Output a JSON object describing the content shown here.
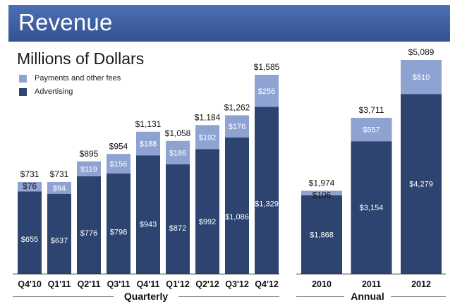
{
  "header": {
    "title": "Revenue"
  },
  "subtitle": "Millions of Dollars",
  "colors": {
    "advertising": "#2d4470",
    "payments": "#8ea3d1",
    "header_bg": "#3f5fa3"
  },
  "legend": [
    {
      "name": "Payments and other fees",
      "color_key": "payments"
    },
    {
      "name": "Advertising",
      "color_key": "advertising"
    }
  ],
  "chart_data": [
    {
      "type": "bar",
      "stacked": true,
      "group_label": "Quarterly",
      "categories": [
        "Q4'10",
        "Q1'11",
        "Q2'11",
        "Q3'11",
        "Q4'11",
        "Q1'12",
        "Q2'12",
        "Q3'12",
        "Q4'12"
      ],
      "series": [
        {
          "name": "Advertising",
          "values": [
            655,
            637,
            776,
            798,
            943,
            872,
            992,
            1086,
            1329
          ]
        },
        {
          "name": "Payments and other fees",
          "values": [
            76,
            94,
            119,
            156,
            188,
            186,
            192,
            176,
            256
          ]
        }
      ],
      "totals": [
        731,
        731,
        895,
        954,
        1131,
        1058,
        1184,
        1262,
        1585
      ],
      "advertising_labels": [
        "$655",
        "$637",
        "$776",
        "$798",
        "$943",
        "$872",
        "$992",
        "$1,086",
        "$1,329"
      ],
      "payments_labels": [
        "$76",
        "$94",
        "$119",
        "$156",
        "$188",
        "$186",
        "$192",
        "$176",
        "$256"
      ],
      "total_labels": [
        "$731",
        "$731",
        "$895",
        "$954",
        "$1,131",
        "$1,058",
        "$1,184",
        "$1,262",
        "$1,585"
      ],
      "ylim": [
        0,
        1585
      ]
    },
    {
      "type": "bar",
      "stacked": true,
      "group_label": "Annual",
      "categories": [
        "2010",
        "2011",
        "2012"
      ],
      "series": [
        {
          "name": "Advertising",
          "values": [
            1868,
            3154,
            4279
          ]
        },
        {
          "name": "Payments and other fees",
          "values": [
            106,
            557,
            810
          ]
        }
      ],
      "totals": [
        1974,
        3711,
        5089
      ],
      "advertising_labels": [
        "$1,868",
        "$3,154",
        "$4,279"
      ],
      "payments_labels": [
        "$106",
        "$557",
        "$810"
      ],
      "total_labels": [
        "$1,974",
        "$3,711",
        "$5,089"
      ],
      "ylim": [
        0,
        5089
      ]
    }
  ]
}
